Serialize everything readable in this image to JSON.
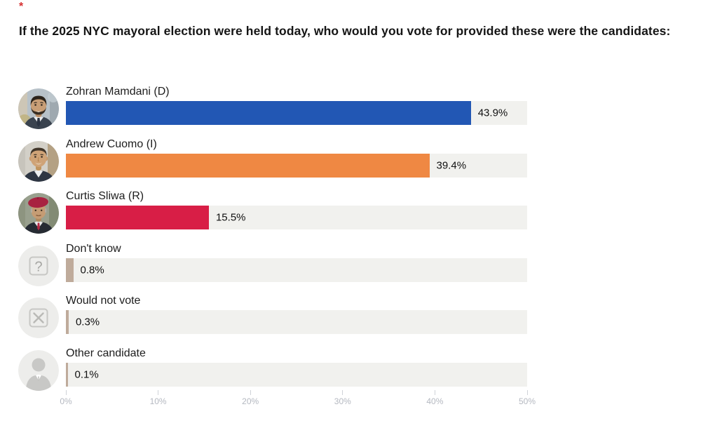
{
  "required_marker": "*",
  "title": "If the 2025 NYC mayoral election were held today, who would you vote for provided these were the candidates:",
  "rows": [
    {
      "label": "Zohran Mamdani (D)",
      "value": 43.9,
      "value_label": "43.9%",
      "color": "#2257b4",
      "avatar": "mamdani-photo"
    },
    {
      "label": "Andrew Cuomo (I)",
      "value": 39.4,
      "value_label": "39.4%",
      "color": "#ef8843",
      "avatar": "cuomo-photo"
    },
    {
      "label": "Curtis Sliwa (R)",
      "value": 15.5,
      "value_label": "15.5%",
      "color": "#d81e46",
      "avatar": "sliwa-photo"
    },
    {
      "label": "Don't know",
      "value": 0.8,
      "value_label": "0.8%",
      "color": "#bfab9b",
      "avatar": "question-icon"
    },
    {
      "label": "Would not vote",
      "value": 0.3,
      "value_label": "0.3%",
      "color": "#bfab9b",
      "avatar": "x-icon"
    },
    {
      "label": "Other candidate",
      "value": 0.1,
      "value_label": "0.1%",
      "color": "#bfab9b",
      "avatar": "person-icon"
    }
  ],
  "axis": {
    "max": 50,
    "tick_labels": [
      "0%",
      "10%",
      "20%",
      "30%",
      "40%",
      "50%"
    ]
  },
  "colors": {
    "track": "#f1f1ee",
    "axis_text": "#b4b8c0",
    "tick": "#cfd2d8",
    "title_text": "#151515",
    "label_text": "#1d1d1d",
    "required_mark": "#d63031"
  },
  "chart_data": {
    "type": "bar",
    "orientation": "horizontal",
    "title": "If the 2025 NYC mayoral election were held today, who would you vote for provided these were the candidates:",
    "categories": [
      "Zohran Mamdani (D)",
      "Andrew Cuomo (I)",
      "Curtis Sliwa (R)",
      "Don't know",
      "Would not vote",
      "Other candidate"
    ],
    "values": [
      43.9,
      39.4,
      15.5,
      0.8,
      0.3,
      0.1
    ],
    "value_labels": [
      "43.9%",
      "39.4%",
      "15.5%",
      "0.8%",
      "0.3%",
      "0.1%"
    ],
    "bar_colors": [
      "#2257b4",
      "#ef8843",
      "#d81e46",
      "#bfab9b",
      "#bfab9b",
      "#bfab9b"
    ],
    "xlabel": "",
    "ylabel": "",
    "xlim": [
      0,
      50
    ],
    "x_tick_labels": [
      "0%",
      "10%",
      "20%",
      "30%",
      "40%",
      "50%"
    ],
    "grid": false,
    "legend": false
  }
}
